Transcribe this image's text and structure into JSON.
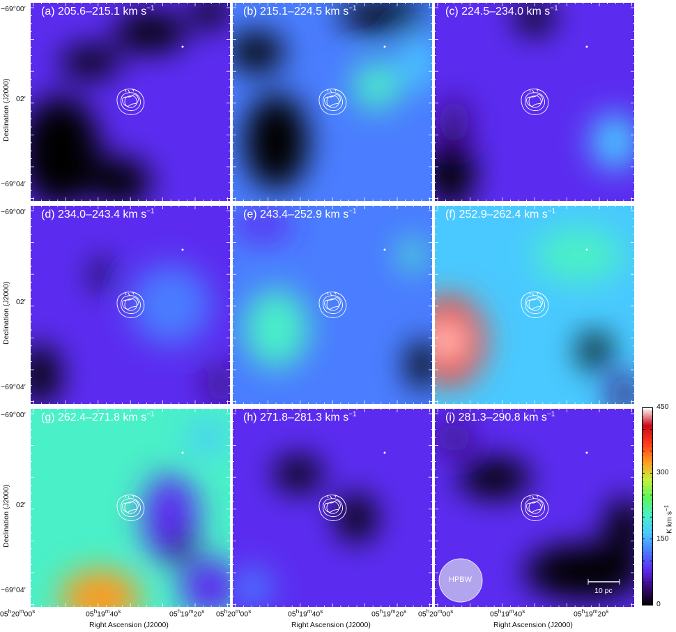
{
  "figure": {
    "x_axis_title": "Right Ascension (J2000)",
    "y_axis_title": "Declination (J2000)",
    "x_tick_labels": [
      {
        "h": "05",
        "m": "20",
        "s": "00"
      },
      {
        "m": "19",
        "s": "40"
      },
      {
        "m": "19",
        "s": "20"
      }
    ],
    "x_tick_prefix": "05",
    "x_tick_right_edge": {
      "h": "05",
      "m": "20",
      "s": "00"
    },
    "y_tick_labels": [
      "−69°00′",
      "02′",
      "−69°04′"
    ],
    "beam_label": "HPBW",
    "scale_bar_label": "10 pc",
    "colorbar": {
      "ticks": [
        "450",
        "300",
        "150",
        "0"
      ],
      "tick_values": [
        450,
        300,
        150,
        0
      ],
      "range": [
        0,
        450
      ],
      "title": "K km s",
      "title_sup": "−1"
    },
    "panels": [
      {
        "id": "a",
        "title": "(a) 205.6–215.1 km s",
        "sup": "−1"
      },
      {
        "id": "b",
        "title": "(b) 215.1–224.5 km s",
        "sup": "−1"
      },
      {
        "id": "c",
        "title": "(c) 224.5–234.0 km s",
        "sup": "−1"
      },
      {
        "id": "d",
        "title": "(d) 234.0–243.4 km s",
        "sup": "−1"
      },
      {
        "id": "e",
        "title": "(e) 243.4–252.9 km s",
        "sup": "−1"
      },
      {
        "id": "f",
        "title": "(f) 252.9–262.4 km s",
        "sup": "−1"
      },
      {
        "id": "g",
        "title": "(g) 262.4–271.8 km s",
        "sup": "−1"
      },
      {
        "id": "h",
        "title": "(h) 271.8–281.3 km s",
        "sup": "−1"
      },
      {
        "id": "i",
        "title": "(i) 281.3–290.8 km s",
        "sup": "−1"
      }
    ]
  },
  "chart_data": {
    "type": "heatmap",
    "colormap": [
      "#000000",
      "#3a0a7a",
      "#5b2cf0",
      "#4a7dff",
      "#49c9ff",
      "#4af0c8",
      "#5ef55a",
      "#c8f03c",
      "#ff9a1e",
      "#ff3a1a",
      "#c80a1a",
      "#ffffff"
    ],
    "panels": [
      {
        "id": "a",
        "background_value": 95,
        "blobs": [
          {
            "x": 0.15,
            "y": 0.75,
            "rx": 0.2,
            "ry": 0.28,
            "v": 0
          },
          {
            "x": 0.45,
            "y": 0.9,
            "rx": 0.15,
            "ry": 0.12,
            "v": 5
          },
          {
            "x": 0.6,
            "y": 0.15,
            "rx": 0.18,
            "ry": 0.1,
            "v": 15
          },
          {
            "x": 0.3,
            "y": 0.3,
            "rx": 0.15,
            "ry": 0.08,
            "v": 20
          },
          {
            "x": 0.9,
            "y": 0.05,
            "rx": 0.1,
            "ry": 0.08,
            "v": 10
          }
        ]
      },
      {
        "id": "b",
        "background_value": 105,
        "blobs": [
          {
            "x": 0.22,
            "y": 0.7,
            "rx": 0.16,
            "ry": 0.24,
            "v": 0
          },
          {
            "x": 0.12,
            "y": 0.25,
            "rx": 0.14,
            "ry": 0.1,
            "v": 20
          },
          {
            "x": 0.75,
            "y": 0.07,
            "rx": 0.22,
            "ry": 0.08,
            "v": 15
          },
          {
            "x": 0.72,
            "y": 0.42,
            "rx": 0.12,
            "ry": 0.12,
            "v": 185
          },
          {
            "x": 0.93,
            "y": 0.3,
            "rx": 0.09,
            "ry": 0.14,
            "v": 180
          }
        ]
      },
      {
        "id": "c",
        "background_value": 80,
        "blobs": [
          {
            "x": 0.08,
            "y": 0.85,
            "rx": 0.12,
            "ry": 0.18,
            "v": 0
          },
          {
            "x": 0.5,
            "y": 0.08,
            "rx": 0.1,
            "ry": 0.08,
            "v": 15
          },
          {
            "x": 0.9,
            "y": 0.7,
            "rx": 0.12,
            "ry": 0.14,
            "v": 150
          },
          {
            "x": 0.1,
            "y": 0.6,
            "rx": 0.08,
            "ry": 0.12,
            "v": 40
          }
        ]
      },
      {
        "id": "d",
        "background_value": 100,
        "blobs": [
          {
            "x": 0.36,
            "y": 0.35,
            "rx": 0.05,
            "ry": 0.08,
            "v": 10
          },
          {
            "x": 0.05,
            "y": 0.85,
            "rx": 0.1,
            "ry": 0.15,
            "v": 15
          },
          {
            "x": 0.95,
            "y": 0.9,
            "rx": 0.08,
            "ry": 0.1,
            "v": 40
          },
          {
            "x": 0.7,
            "y": 0.5,
            "rx": 0.2,
            "ry": 0.2,
            "v": 120
          }
        ]
      },
      {
        "id": "e",
        "background_value": 125,
        "blobs": [
          {
            "x": 0.22,
            "y": 0.62,
            "rx": 0.16,
            "ry": 0.2,
            "v": 215
          },
          {
            "x": 0.9,
            "y": 0.25,
            "rx": 0.07,
            "ry": 0.08,
            "v": 185
          },
          {
            "x": 0.15,
            "y": 0.1,
            "rx": 0.15,
            "ry": 0.08,
            "v": 80
          },
          {
            "x": 0.95,
            "y": 0.8,
            "rx": 0.08,
            "ry": 0.12,
            "v": 10
          }
        ]
      },
      {
        "id": "f",
        "background_value": 175,
        "blobs": [
          {
            "x": 0.07,
            "y": 0.68,
            "rx": 0.18,
            "ry": 0.22,
            "v": 360
          },
          {
            "x": 0.06,
            "y": 0.68,
            "rx": 0.07,
            "ry": 0.06,
            "v": 450
          },
          {
            "x": 0.8,
            "y": 0.73,
            "rx": 0.08,
            "ry": 0.09,
            "v": 0
          },
          {
            "x": 0.72,
            "y": 0.25,
            "rx": 0.22,
            "ry": 0.14,
            "v": 220
          },
          {
            "x": 0.95,
            "y": 0.95,
            "rx": 0.08,
            "ry": 0.1,
            "v": 30
          }
        ]
      },
      {
        "id": "g",
        "background_value": 205,
        "blobs": [
          {
            "x": 0.35,
            "y": 0.95,
            "rx": 0.2,
            "ry": 0.14,
            "v": 330
          },
          {
            "x": 0.7,
            "y": 0.55,
            "rx": 0.14,
            "ry": 0.22,
            "v": 80
          },
          {
            "x": 0.75,
            "y": 0.7,
            "rx": 0.06,
            "ry": 0.08,
            "v": 0
          },
          {
            "x": 0.88,
            "y": 0.15,
            "rx": 0.1,
            "ry": 0.08,
            "v": 180
          },
          {
            "x": 0.9,
            "y": 0.9,
            "rx": 0.15,
            "ry": 0.15,
            "v": 100
          }
        ]
      },
      {
        "id": "h",
        "background_value": 90,
        "blobs": [
          {
            "x": 0.33,
            "y": 0.33,
            "rx": 0.12,
            "ry": 0.09,
            "v": 0
          },
          {
            "x": 0.62,
            "y": 0.55,
            "rx": 0.1,
            "ry": 0.12,
            "v": 20
          },
          {
            "x": 0.1,
            "y": 0.9,
            "rx": 0.1,
            "ry": 0.1,
            "v": 130
          }
        ]
      },
      {
        "id": "i",
        "background_value": 85,
        "blobs": [
          {
            "x": 0.3,
            "y": 0.35,
            "rx": 0.18,
            "ry": 0.1,
            "v": 0
          },
          {
            "x": 0.75,
            "y": 0.82,
            "rx": 0.3,
            "ry": 0.14,
            "v": 0
          },
          {
            "x": 0.95,
            "y": 0.6,
            "rx": 0.1,
            "ry": 0.15,
            "v": 10
          },
          {
            "x": 0.1,
            "y": 0.15,
            "rx": 0.1,
            "ry": 0.08,
            "v": 30
          }
        ]
      }
    ]
  }
}
